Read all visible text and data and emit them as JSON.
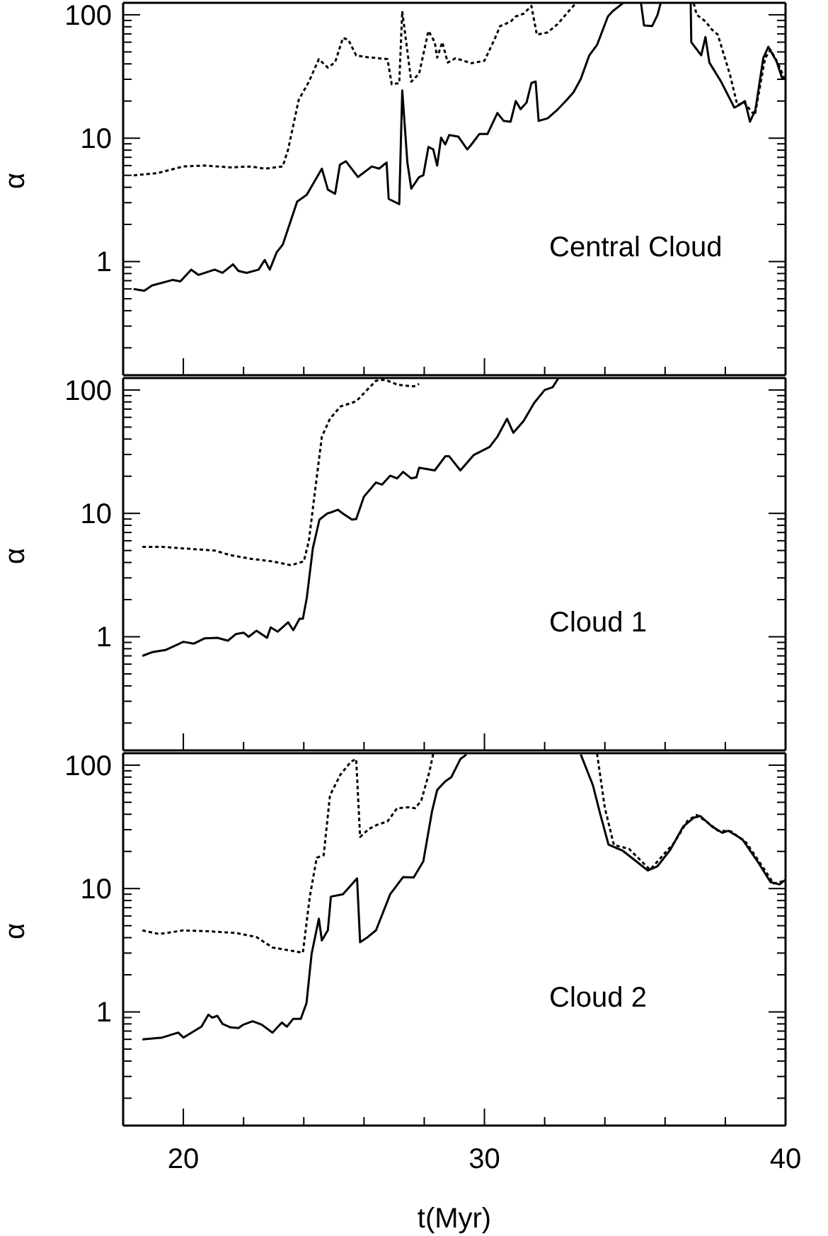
{
  "chart_data": [
    {
      "type": "line",
      "ylabel": "α",
      "annotations": [
        "Central Cloud"
      ],
      "tick_labels": "y",
      "log": "y",
      "xlim": [
        18,
        40
      ],
      "xticks": [
        {
          "value": 18,
          "label": null
        },
        20,
        {
          "value": 22,
          "label": null
        },
        {
          "value": 24,
          "label": null
        },
        {
          "value": 26,
          "label": null
        },
        {
          "value": 28,
          "label": null
        },
        30,
        {
          "value": 32,
          "label": null
        },
        {
          "value": 34,
          "label": null
        },
        {
          "value": 36,
          "label": null
        },
        {
          "value": 38,
          "label": null
        },
        40
      ],
      "ylim": [
        0.12,
        125
      ],
      "yticks": [
        {
          "value": 0.2,
          "label": null
        },
        {
          "value": 0.3,
          "label": null
        },
        {
          "value": 0.4,
          "label": null
        },
        {
          "value": 0.5,
          "label": null
        },
        {
          "value": 0.6,
          "label": null
        },
        {
          "value": 0.7,
          "label": null
        },
        {
          "value": 0.8,
          "label": null
        },
        {
          "value": 0.9,
          "label": null
        },
        1,
        {
          "value": 2,
          "label": null
        },
        {
          "value": 3,
          "label": null
        },
        {
          "value": 4,
          "label": null
        },
        {
          "value": 5,
          "label": null
        },
        {
          "value": 6,
          "label": null
        },
        {
          "value": 7,
          "label": null
        },
        {
          "value": 8,
          "label": null
        },
        {
          "value": 9,
          "label": null
        },
        10,
        {
          "value": 20,
          "label": null
        },
        {
          "value": 30,
          "label": null
        },
        {
          "value": 40,
          "label": null
        },
        {
          "value": 50,
          "label": null
        },
        {
          "value": 60,
          "label": null
        },
        {
          "value": 70,
          "label": null
        },
        {
          "value": 80,
          "label": null
        },
        {
          "value": 90,
          "label": null
        },
        100
      ],
      "series": [
        {
          "color": "#000000",
          "line_style": "solid",
          "x": [
            18.35,
            18.7,
            18.96,
            19.65,
            19.9,
            20.26,
            20.5,
            21.04,
            21.3,
            21.65,
            21.83,
            22.1,
            22.5,
            22.7,
            22.87,
            23.1,
            23.3,
            23.78,
            24.1,
            24.6,
            24.8,
            25.04,
            25.2,
            25.4,
            25.8,
            26.26,
            26.5,
            26.75,
            26.82,
            27.17,
            27.27,
            27.44,
            27.57,
            27.83,
            27.97,
            28.14,
            28.3,
            28.43,
            28.56,
            28.7,
            28.83,
            29.13,
            29.43,
            29.57,
            29.83,
            30.1,
            30.43,
            30.64,
            30.87,
            31.04,
            31.2,
            31.4,
            31.56,
            31.7,
            31.8,
            32.1,
            32.4,
            32.7,
            32.96,
            33.2,
            33.48,
            33.74,
            34.1,
            34.26,
            34.6
          ],
          "values": [
            0.6,
            0.58,
            0.64,
            0.71,
            0.69,
            0.86,
            0.78,
            0.86,
            0.81,
            0.95,
            0.84,
            0.81,
            0.86,
            1.03,
            0.86,
            1.19,
            1.37,
            3.06,
            3.48,
            5.66,
            3.83,
            3.54,
            6.1,
            6.5,
            4.84,
            5.9,
            5.66,
            6.35,
            3.22,
            2.92,
            24.4,
            6.35,
            3.9,
            4.84,
            5.0,
            8.5,
            8.1,
            6.0,
            10.1,
            8.9,
            10.6,
            10.3,
            8.1,
            8.9,
            10.8,
            10.8,
            16.0,
            13.8,
            13.6,
            20.0,
            17.2,
            19.5,
            28,
            28.8,
            13.8,
            14.5,
            16.8,
            20.0,
            23.6,
            30.2,
            46.8,
            57,
            97,
            107,
            124
          ]
        },
        {
          "color": "#000000",
          "line_style": "solid",
          "x": [
            35.2,
            35.3,
            35.57,
            35.75,
            35.85
          ],
          "values": [
            124,
            82,
            81,
            100,
            124
          ]
        },
        {
          "color": "#000000",
          "line_style": "solid",
          "x": [
            36.85,
            36.87,
            37.2,
            37.34,
            37.47,
            37.85,
            38.3,
            38.47,
            38.65,
            38.82,
            39.0,
            39.26,
            39.43,
            39.7,
            39.9
          ],
          "values": [
            124,
            60,
            47,
            66,
            41,
            29,
            17.7,
            18.6,
            20,
            13.6,
            17,
            44.5,
            55,
            42,
            30
          ]
        },
        {
          "color": "#000000",
          "line_style": "dotted",
          "x": [
            18.35,
            19.13,
            20.0,
            20.7,
            21.57,
            22.26,
            22.7,
            23.3,
            23.48,
            23.83,
            24.17,
            24.5,
            24.8,
            25.04,
            25.3,
            25.48,
            25.74,
            26.1,
            26.78,
            26.92,
            27.17,
            27.27,
            27.57,
            27.83,
            28.14,
            28.35,
            28.43,
            28.6,
            28.78,
            29.04,
            29.57,
            30.0,
            30.35,
            30.52,
            30.87,
            31.04,
            31.3,
            31.56,
            31.74,
            32.1,
            32.43,
            32.87,
            33.04
          ],
          "values": [
            5.0,
            5.2,
            5.9,
            6.0,
            5.8,
            5.9,
            5.66,
            5.9,
            8.1,
            20.4,
            28.7,
            43.7,
            37.3,
            41.2,
            65,
            62.7,
            46.8,
            45.4,
            43.7,
            27.4,
            27.9,
            107,
            28.7,
            33.3,
            74,
            60,
            45,
            60,
            41,
            44.5,
            40.5,
            42.4,
            64.5,
            81,
            88,
            97,
            102,
            118,
            69,
            72,
            84,
            112,
            124
          ]
        },
        {
          "color": "#000000",
          "line_style": "dotted",
          "x": [
            36.95,
            37.05,
            37.35,
            37.55,
            37.75,
            38.15,
            38.4,
            38.62,
            38.98,
            39.32,
            39.5,
            39.76,
            39.97
          ],
          "values": [
            124,
            100,
            88,
            76,
            69,
            33,
            18.5,
            19.5,
            15.3,
            44.5,
            52,
            40,
            30
          ]
        }
      ]
    },
    {
      "type": "line",
      "ylabel": "α",
      "annotations": [
        "Cloud 1"
      ],
      "tick_labels": "y",
      "log": "y",
      "xlim": [
        18,
        40
      ],
      "xticks": [
        {
          "value": 18,
          "label": null
        },
        20,
        {
          "value": 22,
          "label": null
        },
        {
          "value": 24,
          "label": null
        },
        {
          "value": 26,
          "label": null
        },
        {
          "value": 28,
          "label": null
        },
        30,
        {
          "value": 32,
          "label": null
        },
        {
          "value": 34,
          "label": null
        },
        {
          "value": 36,
          "label": null
        },
        {
          "value": 38,
          "label": null
        },
        40
      ],
      "ylim": [
        0.12,
        125
      ],
      "yticks": [
        {
          "value": 0.2,
          "label": null
        },
        {
          "value": 0.3,
          "label": null
        },
        {
          "value": 0.4,
          "label": null
        },
        {
          "value": 0.5,
          "label": null
        },
        {
          "value": 0.6,
          "label": null
        },
        {
          "value": 0.7,
          "label": null
        },
        {
          "value": 0.8,
          "label": null
        },
        {
          "value": 0.9,
          "label": null
        },
        1,
        {
          "value": 2,
          "label": null
        },
        {
          "value": 3,
          "label": null
        },
        {
          "value": 4,
          "label": null
        },
        {
          "value": 5,
          "label": null
        },
        {
          "value": 6,
          "label": null
        },
        {
          "value": 7,
          "label": null
        },
        {
          "value": 8,
          "label": null
        },
        {
          "value": 9,
          "label": null
        },
        10,
        {
          "value": 20,
          "label": null
        },
        {
          "value": 30,
          "label": null
        },
        {
          "value": 40,
          "label": null
        },
        {
          "value": 50,
          "label": null
        },
        {
          "value": 60,
          "label": null
        },
        {
          "value": 70,
          "label": null
        },
        {
          "value": 80,
          "label": null
        },
        {
          "value": 90,
          "label": null
        },
        100
      ],
      "series": [
        {
          "color": "#000000",
          "line_style": "solid",
          "x": [
            18.64,
            18.96,
            19.4,
            20.0,
            20.35,
            20.7,
            21.13,
            21.48,
            21.74,
            22.0,
            22.17,
            22.43,
            22.78,
            22.9,
            23.13,
            23.48,
            23.65,
            23.86,
            23.97,
            24.1,
            24.3,
            24.52,
            24.78,
            24.96,
            25.13,
            25.3,
            25.6,
            25.74,
            26.0,
            26.4,
            26.6,
            26.87,
            27.1,
            27.3,
            27.57,
            27.74,
            27.83,
            28.35,
            28.7,
            28.83,
            29.2,
            29.65,
            30.17,
            30.43,
            30.75,
            30.96,
            31.3,
            31.65,
            32.0,
            32.26,
            32.45
          ],
          "values": [
            0.7,
            0.75,
            0.78,
            0.91,
            0.88,
            0.97,
            0.98,
            0.93,
            1.05,
            1.08,
            1.0,
            1.12,
            0.98,
            1.19,
            1.1,
            1.31,
            1.13,
            1.4,
            1.4,
            2.07,
            5.2,
            8.9,
            9.97,
            10.3,
            10.7,
            9.97,
            8.9,
            9.0,
            13.7,
            17.8,
            17.1,
            20.2,
            19.2,
            21.7,
            19.2,
            19.6,
            23.4,
            22.3,
            29,
            29,
            22.3,
            29.8,
            34.5,
            41.8,
            58.5,
            45,
            56,
            78.5,
            100,
            105,
            124
          ]
        },
        {
          "color": "#000000",
          "line_style": "dotted",
          "x": [
            18.64,
            19.3,
            20.0,
            21.04,
            21.57,
            22.26,
            22.96,
            23.57,
            24.0,
            24.17,
            24.35,
            24.6,
            24.87,
            25.22,
            25.74,
            26.1,
            26.4,
            26.7,
            27.13,
            27.65,
            27.83
          ],
          "values": [
            5.35,
            5.35,
            5.2,
            5.0,
            4.58,
            4.28,
            4.08,
            3.8,
            4.08,
            6.0,
            13.7,
            41.8,
            58.5,
            73.5,
            80.8,
            100,
            119,
            121,
            110,
            107,
            112
          ]
        }
      ]
    },
    {
      "type": "line",
      "ylabel": "α",
      "xlabel": "t(Myr)",
      "annotations": [
        "Cloud 2"
      ],
      "log": "y",
      "xlim": [
        18,
        40
      ],
      "xticks": [
        {
          "value": 18,
          "label": null
        },
        20,
        {
          "value": 22,
          "label": null
        },
        {
          "value": 24,
          "label": null
        },
        {
          "value": 26,
          "label": null
        },
        {
          "value": 28,
          "label": null
        },
        30,
        {
          "value": 32,
          "label": null
        },
        {
          "value": 34,
          "label": null
        },
        {
          "value": 36,
          "label": null
        },
        {
          "value": 38,
          "label": null
        },
        40
      ],
      "ylim": [
        0.12,
        125
      ],
      "yticks": [
        {
          "value": 0.2,
          "label": null
        },
        {
          "value": 0.3,
          "label": null
        },
        {
          "value": 0.4,
          "label": null
        },
        {
          "value": 0.5,
          "label": null
        },
        {
          "value": 0.6,
          "label": null
        },
        {
          "value": 0.7,
          "label": null
        },
        {
          "value": 0.8,
          "label": null
        },
        {
          "value": 0.9,
          "label": null
        },
        1,
        {
          "value": 2,
          "label": null
        },
        {
          "value": 3,
          "label": null
        },
        {
          "value": 4,
          "label": null
        },
        {
          "value": 5,
          "label": null
        },
        {
          "value": 6,
          "label": null
        },
        {
          "value": 7,
          "label": null
        },
        {
          "value": 8,
          "label": null
        },
        {
          "value": 9,
          "label": null
        },
        10,
        {
          "value": 20,
          "label": null
        },
        {
          "value": 30,
          "label": null
        },
        {
          "value": 40,
          "label": null
        },
        {
          "value": 50,
          "label": null
        },
        {
          "value": 60,
          "label": null
        },
        {
          "value": 70,
          "label": null
        },
        {
          "value": 80,
          "label": null
        },
        {
          "value": 90,
          "label": null
        },
        100
      ],
      "series": [
        {
          "color": "#000000",
          "line_style": "solid",
          "x": [
            18.64,
            19.3,
            19.83,
            20.0,
            20.6,
            20.83,
            20.96,
            21.13,
            21.3,
            21.57,
            21.83,
            22.0,
            22.3,
            22.6,
            22.96,
            23.27,
            23.44,
            23.65,
            23.9,
            24.09,
            24.26,
            24.5,
            24.6,
            24.8,
            24.9,
            25.3,
            25.5,
            25.77,
            25.87,
            26.1,
            26.4,
            26.87,
            27.3,
            27.65,
            27.97,
            28.26,
            28.43,
            28.7,
            28.9,
            29.2,
            29.4
          ],
          "values": [
            0.6,
            0.62,
            0.68,
            0.62,
            0.76,
            0.95,
            0.9,
            0.93,
            0.8,
            0.75,
            0.74,
            0.79,
            0.84,
            0.79,
            0.68,
            0.82,
            0.76,
            0.88,
            0.88,
            1.18,
            2.96,
            5.7,
            3.8,
            4.6,
            8.6,
            9.0,
            10.2,
            12.1,
            3.67,
            4.0,
            4.6,
            9.0,
            12.4,
            12.3,
            16.6,
            42.4,
            63,
            74,
            80,
            112,
            122
          ]
        },
        {
          "color": "#000000",
          "line_style": "solid",
          "x": [
            33.2,
            33.6,
            33.83,
            34.12,
            34.6,
            35.43,
            35.74,
            36.17,
            36.6,
            36.96,
            37.17,
            37.56,
            37.9,
            38.1,
            38.57,
            39.1,
            39.5,
            39.8,
            40.0
          ],
          "values": [
            122,
            69,
            41.5,
            22.7,
            20.2,
            14.0,
            15.1,
            20.6,
            31.8,
            37.6,
            38.7,
            31.8,
            28.3,
            29.4,
            25.0,
            16.2,
            11.3,
            10.8,
            11.8
          ]
        },
        {
          "color": "#000000",
          "line_style": "dotted",
          "x": [
            18.64,
            19.2,
            20.0,
            20.87,
            21.74,
            22.43,
            22.96,
            23.97,
            24.2,
            24.43,
            24.66,
            24.87,
            25.22,
            25.57,
            25.74,
            25.87,
            26.17,
            26.43,
            26.78,
            27.1,
            27.48,
            27.7,
            27.9,
            28.17,
            28.3
          ],
          "values": [
            4.58,
            4.28,
            4.58,
            4.5,
            4.37,
            4.04,
            3.33,
            3.02,
            8.6,
            17.8,
            18.6,
            57,
            84,
            107,
            112,
            26.2,
            30.5,
            32.8,
            35,
            44.8,
            45.6,
            44.8,
            51.5,
            88,
            124
          ]
        },
        {
          "color": "#000000",
          "line_style": "dotted",
          "x": [
            33.74,
            34.0,
            34.3,
            34.8,
            35.5,
            36.3,
            36.75,
            37.05,
            37.4,
            37.75,
            38.2,
            38.7,
            39.2,
            39.6,
            39.95
          ],
          "values": [
            124,
            44.8,
            22.5,
            21.0,
            14.2,
            23.5,
            35.5,
            39.5,
            34.5,
            29.5,
            29.0,
            23.5,
            15.5,
            11.0,
            11.5
          ]
        }
      ]
    }
  ]
}
